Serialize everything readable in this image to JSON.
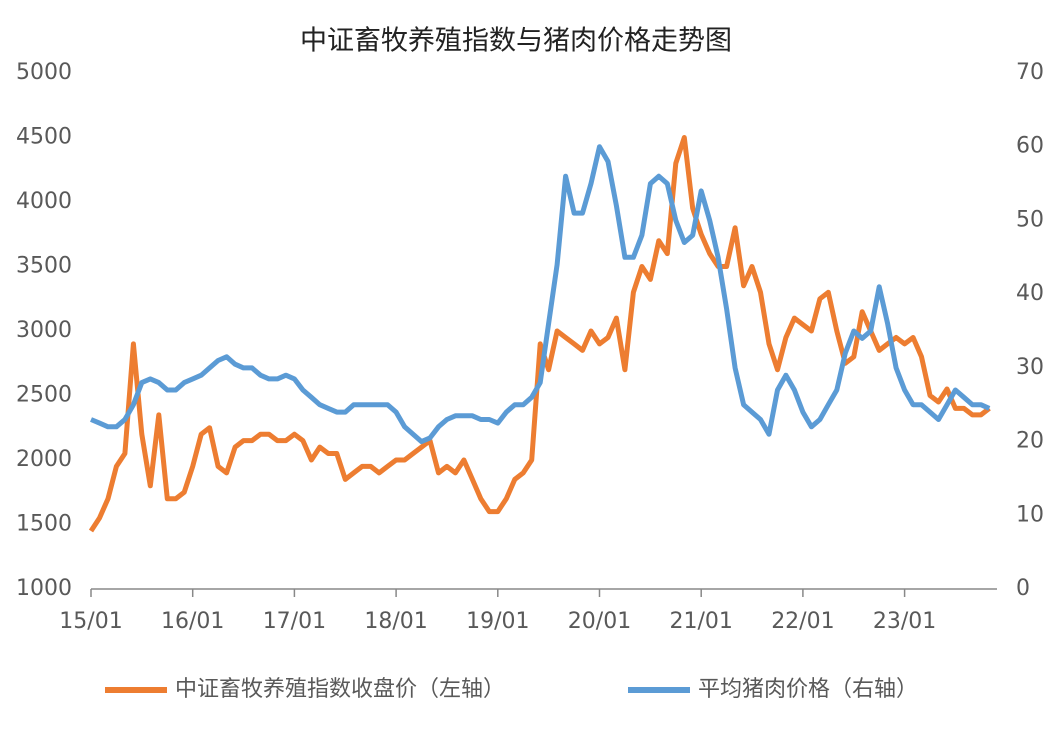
{
  "chart_data": {
    "type": "line",
    "title": "中证畜牧养殖指数与猪肉价格走势图",
    "categories": [
      "15/01",
      null,
      null,
      null,
      null,
      null,
      null,
      null,
      null,
      null,
      null,
      null,
      "16/01",
      null,
      null,
      null,
      null,
      null,
      null,
      null,
      null,
      null,
      null,
      null,
      "17/01",
      null,
      null,
      null,
      null,
      null,
      null,
      null,
      null,
      null,
      null,
      null,
      "18/01",
      null,
      null,
      null,
      null,
      null,
      null,
      null,
      null,
      null,
      null,
      null,
      "19/01",
      null,
      null,
      null,
      null,
      null,
      null,
      null,
      null,
      null,
      null,
      null,
      "20/01",
      null,
      null,
      null,
      null,
      null,
      null,
      null,
      null,
      null,
      null,
      null,
      "21/01",
      null,
      null,
      null,
      null,
      null,
      null,
      null,
      null,
      null,
      null,
      null,
      "22/01",
      null,
      null,
      null,
      null,
      null,
      null,
      null,
      null,
      null,
      null,
      null,
      "23/01",
      null,
      null,
      null,
      null,
      null,
      null,
      null,
      null,
      null,
      null
    ],
    "series": [
      {
        "name": "中证畜牧养殖指数收盘价（左轴）",
        "color": "#ED7D31",
        "axis": "y",
        "values": [
          1450,
          1550,
          1700,
          1950,
          2050,
          2900,
          2200,
          1800,
          2350,
          1700,
          1700,
          1750,
          1950,
          2200,
          2250,
          1950,
          1900,
          2100,
          2150,
          2150,
          2200,
          2200,
          2150,
          2150,
          2200,
          2150,
          2000,
          2100,
          2050,
          2050,
          1850,
          1900,
          1950,
          1950,
          1900,
          1950,
          2000,
          2000,
          2050,
          2100,
          2150,
          1900,
          1950,
          1900,
          2000,
          1850,
          1700,
          1600,
          1600,
          1700,
          1850,
          1900,
          2000,
          2900,
          2700,
          3000,
          2950,
          2900,
          2850,
          3000,
          2900,
          2950,
          3100,
          2700,
          3300,
          3500,
          3400,
          3700,
          3600,
          4300,
          4500,
          3950,
          3750,
          3600,
          3500,
          3500,
          3800,
          3350,
          3500,
          3300,
          2900,
          2700,
          2950,
          3100,
          3050,
          3000,
          3250,
          3300,
          3000,
          2750,
          2800,
          3150,
          3000,
          2850,
          2900,
          2950,
          2900,
          2950,
          2800,
          2500,
          2450,
          2550,
          2400,
          2400,
          2350,
          2350,
          2400
        ]
      },
      {
        "name": "平均猪肉价格（右轴）",
        "color": "#5B9BD5",
        "axis": "y2",
        "values": [
          23,
          22.5,
          22,
          22,
          23,
          25,
          28,
          28.5,
          28,
          27,
          27,
          28,
          28.5,
          29,
          30,
          31,
          31.5,
          30.5,
          30,
          30,
          29,
          28.5,
          28.5,
          29,
          28.5,
          27,
          26,
          25,
          24.5,
          24,
          24,
          25,
          25,
          25,
          25,
          25,
          24,
          22,
          21,
          20,
          20.5,
          22,
          23,
          23.5,
          23.5,
          23.5,
          23,
          23,
          22.5,
          24,
          25,
          25,
          26,
          28,
          36,
          44,
          56,
          51,
          51,
          55,
          60,
          58,
          52,
          45,
          45,
          48,
          55,
          56,
          55,
          50,
          47,
          48,
          54,
          50,
          45,
          38,
          30,
          25,
          24,
          23,
          21,
          27,
          29,
          27,
          24,
          22,
          23,
          25,
          27,
          32,
          35,
          34,
          35,
          41,
          36,
          30,
          27,
          25,
          25,
          24,
          23,
          25,
          27,
          26,
          25,
          25,
          24.5
        ]
      }
    ],
    "ylim": [
      1000,
      5000
    ],
    "yticks": [
      1000,
      1500,
      2000,
      2500,
      3000,
      3500,
      4000,
      4500,
      5000
    ],
    "y2lim": [
      0,
      70
    ],
    "y2ticks": [
      0,
      10,
      20,
      30,
      40,
      50,
      60,
      70
    ],
    "legend": "bottom"
  }
}
